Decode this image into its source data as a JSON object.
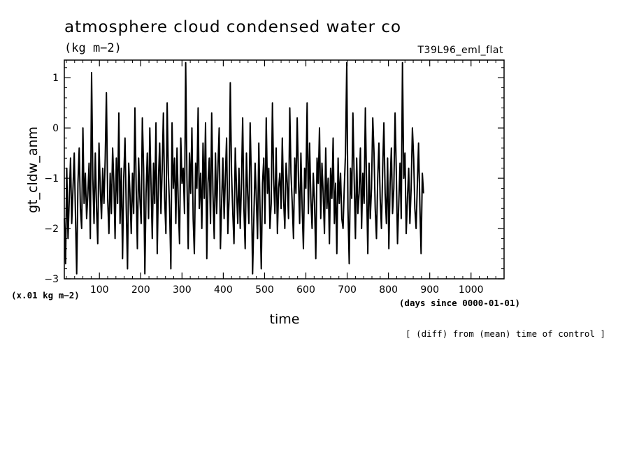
{
  "header": {
    "title": "atmosphere cloud condensed water co",
    "units": "(kg m−2)",
    "run_name": "T39L96_eml_flat"
  },
  "chart_data": {
    "type": "line",
    "title": "atmosphere cloud condensed water co",
    "xlabel": "time",
    "ylabel": "gt_cldw_anm",
    "y_scale_note": "(x.01 kg m−2)",
    "x_units_note": "(days since 0000-01-01)",
    "footnote": "[ (diff) from (mean) time of control ]",
    "xlim": [
      15,
      1080
    ],
    "ylim": [
      -3.0,
      1.35
    ],
    "xticks": [
      100,
      200,
      300,
      400,
      500,
      600,
      700,
      800,
      900,
      1000
    ],
    "yticks": [
      1,
      0,
      -1,
      -2,
      -3
    ],
    "xtick_labels": [
      "100",
      "200",
      "300",
      "400",
      "500",
      "600",
      "700",
      "800",
      "900",
      "1000"
    ],
    "ytick_labels": [
      "1",
      "0",
      "−1",
      "−2",
      "−3"
    ],
    "line_color": "#000000",
    "sampling": "daily",
    "series": [
      {
        "x_start": 15,
        "x_step": 3,
        "values": [
          -1.8,
          -2.7,
          -0.8,
          -2.2,
          -1.4,
          -0.6,
          -1.9,
          -1.2,
          -0.5,
          -1.7,
          -2.9,
          -1.1,
          -0.4,
          -1.6,
          -2.0,
          0.0,
          -1.5,
          -0.9,
          -1.8,
          -1.3,
          -0.7,
          -2.2,
          1.1,
          -1.0,
          -1.9,
          -0.5,
          -1.6,
          -2.3,
          -0.3,
          -1.2,
          -1.8,
          -0.8,
          -1.5,
          -0.6,
          0.7,
          -1.4,
          -2.1,
          -0.9,
          -1.7,
          -0.4,
          -1.1,
          -2.2,
          -0.6,
          -1.5,
          0.3,
          -1.9,
          -0.8,
          -2.6,
          -1.0,
          -0.2,
          -1.6,
          -2.8,
          -0.7,
          -1.3,
          -2.1,
          -0.9,
          -1.7,
          0.4,
          -1.2,
          -2.4,
          -0.6,
          -1.4,
          -1.9,
          0.2,
          -0.8,
          -2.9,
          -1.3,
          -0.5,
          -1.8,
          0.0,
          -1.1,
          -2.2,
          -0.7,
          -1.5,
          0.1,
          -2.5,
          -1.0,
          -0.3,
          -1.7,
          -0.8,
          0.3,
          -1.4,
          -2.1,
          0.5,
          -0.9,
          -1.6,
          -2.8,
          0.1,
          -1.2,
          -0.6,
          -1.9,
          -0.4,
          -1.5,
          -2.3,
          -0.2,
          -1.1,
          -0.8,
          -1.7,
          1.3,
          -1.0,
          -2.4,
          -0.5,
          -1.3,
          0.0,
          -1.8,
          -2.5,
          -0.7,
          -1.2,
          0.4,
          -1.6,
          -0.9,
          -2.0,
          -0.3,
          -1.4,
          0.1,
          -2.6,
          -1.1,
          -0.6,
          -1.9,
          0.3,
          -1.3,
          -2.2,
          -0.5,
          -1.7,
          -0.8,
          0.0,
          -2.4,
          -1.5,
          -0.6,
          -1.8,
          -1.0,
          -0.2,
          -2.1,
          -1.4,
          0.9,
          -0.9,
          -1.7,
          -2.3,
          -0.4,
          -1.2,
          -1.9,
          -0.8,
          -2.0,
          -1.1,
          0.2,
          -1.6,
          -2.4,
          -0.5,
          -1.3,
          -1.9,
          0.1,
          -1.0,
          -2.9,
          -1.8,
          -0.7,
          -1.4,
          -2.2,
          -0.3,
          -1.6,
          -2.8,
          -1.1,
          -0.6,
          -1.9,
          0.2,
          -1.3,
          -0.8,
          -2.0,
          -1.5,
          0.5,
          -1.0,
          -1.7,
          -0.4,
          -2.1,
          -1.2,
          -0.9,
          -1.6,
          -0.2,
          -1.4,
          -2.0,
          -0.7,
          -1.1,
          -1.8,
          0.4,
          -0.9,
          -1.5,
          -2.2,
          -0.6,
          -1.3,
          0.2,
          -1.0,
          -1.9,
          -0.5,
          -1.6,
          -2.4,
          -0.8,
          -1.2,
          0.5,
          -1.7,
          -0.3,
          -1.4,
          -2.0,
          -0.9,
          -1.5,
          -2.6,
          -0.6,
          -1.1,
          0.0,
          -1.8,
          -0.7,
          -1.3,
          -2.1,
          -0.4,
          -1.6,
          -1.0,
          -2.3,
          -0.8,
          -1.4,
          -0.2,
          -1.9,
          -1.1,
          -2.5,
          -0.6,
          -1.5,
          -0.9,
          -1.8,
          -2.0,
          -1.2,
          -0.5,
          1.3,
          -1.6,
          -2.7,
          -0.8,
          -1.4,
          0.3,
          -1.0,
          -2.2,
          -0.6,
          -1.7,
          -1.3,
          -0.4,
          -2.0,
          -0.9,
          -1.5,
          0.4,
          -1.1,
          -2.5,
          -0.7,
          -1.8,
          -1.2,
          0.2,
          -0.5,
          -1.6,
          -2.2,
          -1.0,
          -0.3,
          -1.4,
          -2.0,
          -0.8,
          0.1,
          -1.3,
          -1.9,
          -0.6,
          -2.4,
          -1.1,
          -0.4,
          -1.7,
          -1.2,
          0.3,
          -0.9,
          -2.3,
          -1.5,
          -0.7,
          -1.8,
          1.3,
          -1.0,
          -0.5,
          -2.1,
          -1.4,
          -0.8,
          -1.9,
          -1.2,
          0.0,
          -0.6,
          -1.6,
          -2.0,
          -1.1,
          -0.3,
          -1.5,
          -2.5,
          -0.9,
          -1.3
        ]
      }
    ]
  }
}
